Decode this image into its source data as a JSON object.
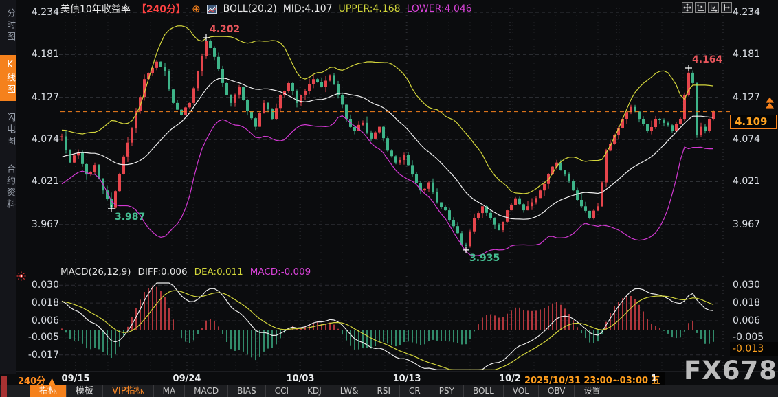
{
  "header": {
    "title": "美债10年收益率",
    "interval_tag": "【240分】",
    "link_glyph": "⊕",
    "boll_label": "BOLL(20,2)",
    "mid_label": "MID:4.107",
    "upper_label": "UPPER:4.168",
    "lower_label": "LOWER:4.046"
  },
  "right_toolbar_icons": [
    "crosshair-move",
    "axis-zoom-vertical",
    "axis-zoom-horizontal",
    "pan-right"
  ],
  "sidebar": {
    "items": [
      {
        "label": "分时图",
        "active": false
      },
      {
        "label": "K线图",
        "active": true
      },
      {
        "label": "闪电图",
        "active": false
      },
      {
        "label": "合约资料",
        "active": false
      }
    ]
  },
  "macd_header": {
    "label": "MACD(26,12,9)",
    "diff": "DIFF:0.006",
    "dea": "DEA:0.011",
    "macd": "MACD:-0.009"
  },
  "price_box": {
    "value": "4.109"
  },
  "macd_box": {
    "value": "-0.013"
  },
  "xaxis": {
    "interval_label": "240分 ▲",
    "tooltip": "2025/10/31 23:00~03:00 五",
    "after_tooltip": "1"
  },
  "toolbar": {
    "items": [
      {
        "label": "指标",
        "variant": "active"
      },
      {
        "label": "模板",
        "variant": "normal"
      },
      {
        "label": "VIP指标",
        "variant": "vip"
      },
      {
        "label": "MA",
        "variant": "plain"
      },
      {
        "label": "MACD",
        "variant": "plain"
      },
      {
        "label": "BIAS",
        "variant": "plain"
      },
      {
        "label": "CCI",
        "variant": "plain"
      },
      {
        "label": "KDJ",
        "variant": "plain"
      },
      {
        "label": "LW&",
        "variant": "plain"
      },
      {
        "label": "RSI",
        "variant": "plain"
      },
      {
        "label": "CR",
        "variant": "plain"
      },
      {
        "label": "PSY",
        "variant": "plain"
      },
      {
        "label": "BOLL",
        "variant": "plain"
      },
      {
        "label": "VOL",
        "variant": "plain"
      },
      {
        "label": "OBV",
        "variant": "plain"
      },
      {
        "label": "设置",
        "variant": "plain"
      }
    ]
  },
  "watermark": "FX678",
  "colors": {
    "up": "#e6454c",
    "down": "#3eb489",
    "boll_upper": "#d4d63c",
    "boll_mid": "#efefef",
    "boll_lower": "#d238d2",
    "dif_line": "#ededed",
    "dea_line": "#d4d63c",
    "accent_orange": "#f5811c",
    "price_orange": "#ffa21f",
    "ann_red": "#e8565c",
    "ann_green": "#45bd92"
  },
  "chart_data": {
    "type": "candlestick",
    "title": "美债10年收益率 240分 K线 + BOLL(20,2) + MACD(26,12,9)",
    "price_axis": [
      4.234,
      4.181,
      4.127,
      4.074,
      4.021,
      3.967
    ],
    "macd_axis_left": [
      0.03,
      0.018,
      0.006,
      -0.005,
      -0.017
    ],
    "macd_axis_right": [
      0.03,
      0.018,
      0.006,
      -0.005
    ],
    "macd_current": -0.013,
    "current_price": 4.109,
    "x_ticks": [
      "09/15",
      "09/24",
      "10/03",
      "10/13",
      "10/2"
    ],
    "boll": {
      "period": 20,
      "mult": 2,
      "mid": 4.107,
      "upper": 4.168,
      "lower": 4.046
    },
    "macd": {
      "fast": 12,
      "slow": 26,
      "signal": 9,
      "diff": 0.006,
      "dea": 0.011,
      "macd": -0.009
    },
    "annotations": [
      {
        "bar": 35,
        "price": 4.202,
        "label": "4.202",
        "side": "high"
      },
      {
        "bar": 152,
        "price": 4.164,
        "label": "4.164",
        "side": "high"
      },
      {
        "bar": 12,
        "price": 3.987,
        "label": "3.987",
        "side": "low"
      },
      {
        "bar": 98,
        "price": 3.935,
        "label": "3.935",
        "side": "low"
      }
    ],
    "keyframes": [
      [
        -40,
        3.955
      ],
      [
        -30,
        3.99
      ],
      [
        -20,
        4.02
      ],
      [
        -10,
        4.052
      ],
      [
        0,
        4.078
      ],
      [
        2,
        4.045
      ],
      [
        4,
        4.058
      ],
      [
        6,
        4.03
      ],
      [
        8,
        4.042
      ],
      [
        10,
        4.01
      ],
      [
        12,
        3.988
      ],
      [
        14,
        4.03
      ],
      [
        16,
        4.07
      ],
      [
        18,
        4.11
      ],
      [
        20,
        4.15
      ],
      [
        23,
        4.172
      ],
      [
        25,
        4.16
      ],
      [
        27,
        4.12
      ],
      [
        29,
        4.105
      ],
      [
        31,
        4.12
      ],
      [
        33,
        4.16
      ],
      [
        35,
        4.198
      ],
      [
        37,
        4.178
      ],
      [
        39,
        4.145
      ],
      [
        41,
        4.12
      ],
      [
        43,
        4.14
      ],
      [
        45,
        4.11
      ],
      [
        47,
        4.09
      ],
      [
        49,
        4.12
      ],
      [
        51,
        4.1
      ],
      [
        53,
        4.13
      ],
      [
        55,
        4.145
      ],
      [
        57,
        4.12
      ],
      [
        59,
        4.135
      ],
      [
        61,
        4.15
      ],
      [
        63,
        4.14
      ],
      [
        65,
        4.155
      ],
      [
        67,
        4.13
      ],
      [
        69,
        4.1
      ],
      [
        71,
        4.085
      ],
      [
        73,
        4.095
      ],
      [
        75,
        4.075
      ],
      [
        77,
        4.09
      ],
      [
        79,
        4.06
      ],
      [
        81,
        4.045
      ],
      [
        83,
        4.055
      ],
      [
        85,
        4.03
      ],
      [
        87,
        4.01
      ],
      [
        89,
        4.02
      ],
      [
        91,
        3.995
      ],
      [
        93,
        3.985
      ],
      [
        95,
        3.965
      ],
      [
        97,
        3.942
      ],
      [
        98,
        3.94
      ],
      [
        100,
        3.975
      ],
      [
        102,
        3.99
      ],
      [
        104,
        3.975
      ],
      [
        106,
        3.96
      ],
      [
        108,
        3.985
      ],
      [
        110,
        4.0
      ],
      [
        112,
        3.985
      ],
      [
        114,
        3.995
      ],
      [
        116,
        4.01
      ],
      [
        118,
        4.03
      ],
      [
        120,
        4.045
      ],
      [
        122,
        4.03
      ],
      [
        124,
        4.01
      ],
      [
        126,
        3.99
      ],
      [
        128,
        3.975
      ],
      [
        130,
        3.99
      ],
      [
        131,
        4.02
      ],
      [
        132,
        4.06
      ],
      [
        134,
        4.08
      ],
      [
        136,
        4.1
      ],
      [
        138,
        4.115
      ],
      [
        140,
        4.1
      ],
      [
        142,
        4.085
      ],
      [
        144,
        4.1
      ],
      [
        146,
        4.095
      ],
      [
        148,
        4.085
      ],
      [
        150,
        4.1
      ],
      [
        152,
        4.158
      ],
      [
        153,
        4.145
      ],
      [
        154,
        4.08
      ],
      [
        155,
        4.09
      ],
      [
        156,
        4.085
      ],
      [
        157,
        4.1
      ],
      [
        158,
        4.109
      ]
    ]
  }
}
